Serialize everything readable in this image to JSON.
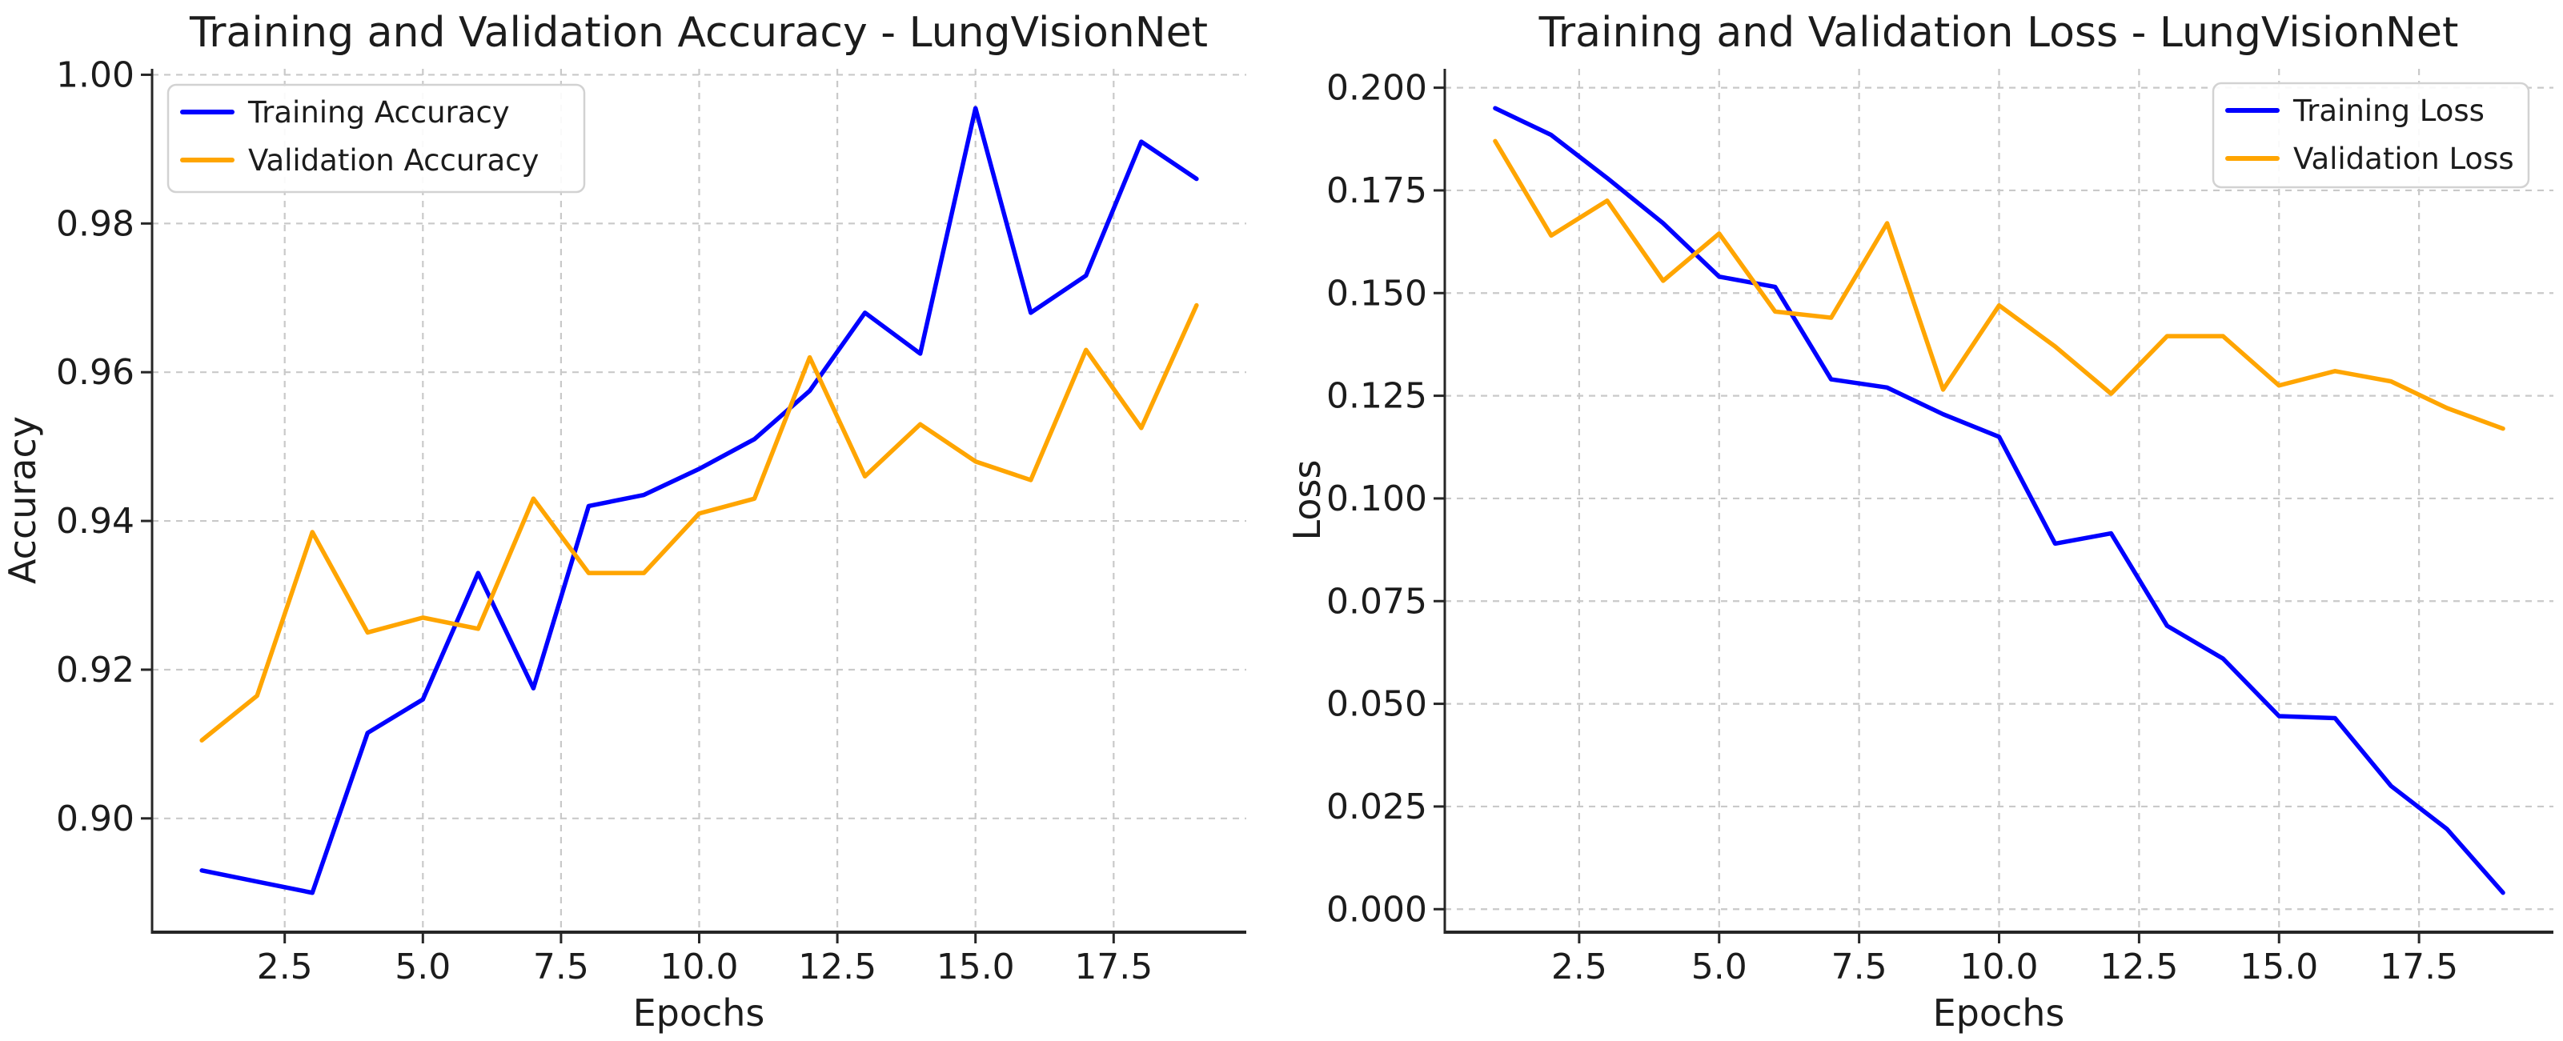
{
  "page": {
    "background": "#ffffff"
  },
  "colors": {
    "training_line": "#0000ff",
    "validation_line": "#ffa500",
    "grid": "#c9c9c9",
    "spine": "#262626",
    "text": "#1c1c1c",
    "legend_border": "#d2d2d2",
    "legend_background": "#ffffff"
  },
  "chart_data": [
    {
      "type": "line",
      "title": "Training and Validation Accuracy - LungVisionNet",
      "xlabel": "Epochs",
      "ylabel": "Accuracy",
      "x": [
        1,
        2,
        3,
        4,
        5,
        6,
        7,
        8,
        9,
        10,
        11,
        12,
        13,
        14,
        15,
        16,
        17,
        18,
        19
      ],
      "series": [
        {
          "name": "Training Accuracy",
          "color": "#0000ff",
          "values": [
            0.893,
            0.8915,
            0.89,
            0.9115,
            0.916,
            0.933,
            0.9175,
            0.942,
            0.9435,
            0.947,
            0.951,
            0.9575,
            0.968,
            0.9625,
            0.9955,
            0.968,
            0.973,
            0.991,
            0.986
          ]
        },
        {
          "name": "Validation Accuracy",
          "color": "#ffa500",
          "values": [
            0.9105,
            0.9165,
            0.9385,
            0.925,
            0.927,
            0.9255,
            0.943,
            0.933,
            0.933,
            0.941,
            0.943,
            0.962,
            0.946,
            0.953,
            0.948,
            0.9455,
            0.963,
            0.9525,
            0.969
          ]
        }
      ],
      "xlim": [
        0.1,
        19.9
      ],
      "ylim": [
        0.8847,
        1.0008
      ],
      "xticks": {
        "values": [
          2.5,
          5.0,
          7.5,
          10.0,
          12.5,
          15.0,
          17.5
        ],
        "labels": [
          "2.5",
          "5.0",
          "7.5",
          "10.0",
          "12.5",
          "15.0",
          "17.5"
        ]
      },
      "yticks": {
        "values": [
          0.9,
          0.92,
          0.94,
          0.96,
          0.98,
          1.0
        ],
        "labels": [
          "0.90",
          "0.92",
          "0.94",
          "0.96",
          "0.98",
          "1.00"
        ]
      },
      "grid": true,
      "legend_position": "upper-left"
    },
    {
      "type": "line",
      "title": "Training and Validation Loss - LungVisionNet",
      "xlabel": "Epochs",
      "ylabel": "Loss",
      "x": [
        1,
        2,
        3,
        4,
        5,
        6,
        7,
        8,
        9,
        10,
        11,
        12,
        13,
        14,
        15,
        16,
        17,
        18,
        19
      ],
      "series": [
        {
          "name": "Training Loss",
          "color": "#0000ff",
          "values": [
            0.195,
            0.1885,
            0.178,
            0.167,
            0.154,
            0.1515,
            0.129,
            0.127,
            0.1205,
            0.115,
            0.089,
            0.0915,
            0.069,
            0.061,
            0.047,
            0.0465,
            0.03,
            0.0195,
            0.004
          ]
        },
        {
          "name": "Validation Loss",
          "color": "#ffa500",
          "values": [
            0.187,
            0.164,
            0.1725,
            0.153,
            0.1645,
            0.1455,
            0.144,
            0.167,
            0.1265,
            0.147,
            0.137,
            0.1255,
            0.1395,
            0.1395,
            0.1275,
            0.131,
            0.1285,
            0.122,
            0.117
          ]
        }
      ],
      "xlim": [
        0.1,
        19.9
      ],
      "ylim": [
        -0.0056,
        0.2046
      ],
      "xticks": {
        "values": [
          2.5,
          5.0,
          7.5,
          10.0,
          12.5,
          15.0,
          17.5
        ],
        "labels": [
          "2.5",
          "5.0",
          "7.5",
          "10.0",
          "12.5",
          "15.0",
          "17.5"
        ]
      },
      "yticks": {
        "values": [
          0.0,
          0.025,
          0.05,
          0.075,
          0.1,
          0.125,
          0.15,
          0.175,
          0.2
        ],
        "labels": [
          "0.000",
          "0.025",
          "0.050",
          "0.075",
          "0.100",
          "0.125",
          "0.150",
          "0.175",
          "0.200"
        ]
      },
      "grid": true,
      "legend_position": "upper-right"
    }
  ]
}
